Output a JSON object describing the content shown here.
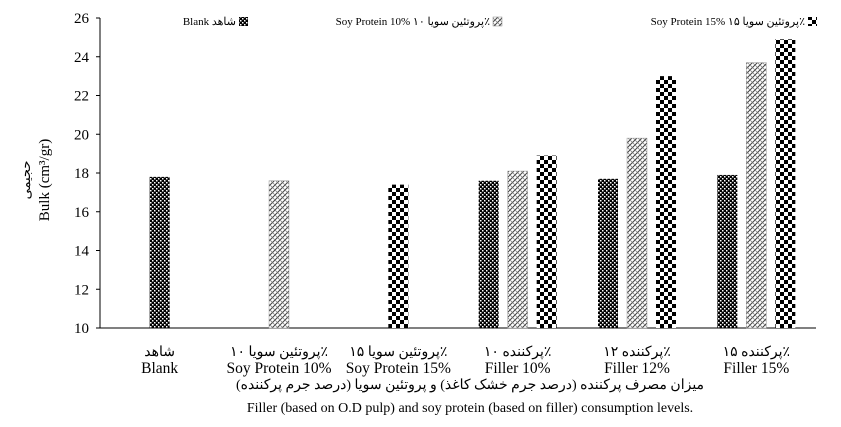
{
  "chart_data": {
    "type": "bar",
    "legend_position": "top",
    "grid": false,
    "ylim": [
      10,
      26
    ],
    "yticks": [
      10,
      12,
      14,
      16,
      18,
      20,
      22,
      24,
      26
    ],
    "ylabel": "Bulk (cm³/gr)",
    "ylabel_fa": "حجیمی",
    "xlabel_fa": "میزان مصرف پرکننده (درصد جرم خشک کاغذ) و پروتئین سویا (درصد جرم پرکننده)",
    "xlabel": "Filler (based on O.D pulp) and soy protein (based on filler) consumption levels.",
    "categories": [
      {
        "fa": "شاهد",
        "en": "Blank"
      },
      {
        "fa": "پروتئین سویا ۱۰٪",
        "en": "Soy Protein 10%"
      },
      {
        "fa": "پروتئین سویا ۱۵٪",
        "en": "Soy Protein 15%"
      },
      {
        "fa": "پرکننده ۱۰٪",
        "en": "Filler 10%"
      },
      {
        "fa": "پرکننده ۱۲٪",
        "en": "Filler 12%"
      },
      {
        "fa": "پرکننده ۱۵٪",
        "en": "Filler 15%"
      }
    ],
    "series": [
      {
        "name": "Blank شاهد",
        "color": "#000000",
        "values": [
          17.8,
          null,
          null,
          17.6,
          17.7,
          17.9
        ]
      },
      {
        "name": "Soy Protein 10% پروتئین سویا ۱۰٪",
        "color": "#555555",
        "values": [
          null,
          17.6,
          null,
          18.1,
          19.8,
          23.7
        ]
      },
      {
        "name": "Soy Protein 15% پروتئین سویا ۱۵٪",
        "color": "#000000",
        "values": [
          null,
          null,
          17.4,
          18.9,
          23.0,
          24.9
        ]
      }
    ]
  }
}
